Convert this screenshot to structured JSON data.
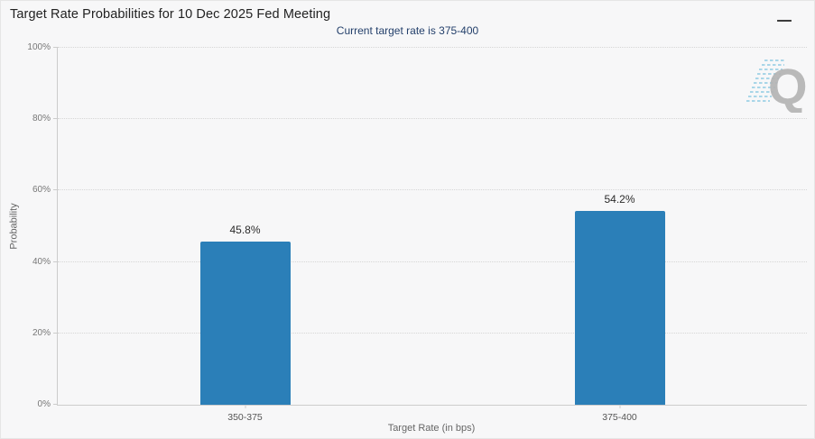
{
  "header": {
    "title": "Target Rate Probabilities for 10 Dec 2025 Fed Meeting",
    "menu_icon": "hamburger-icon"
  },
  "subtitle": "Current target rate is 375-400",
  "watermark": {
    "letter": "Q"
  },
  "chart_data": {
    "type": "bar",
    "title": "Target Rate Probabilities for 10 Dec 2025 Fed Meeting",
    "subtitle": "Current target rate is 375-400",
    "categories": [
      "350-375",
      "375-400"
    ],
    "values": [
      45.8,
      54.2
    ],
    "value_labels": [
      "45.8%",
      "54.2%"
    ],
    "xlabel": "Target Rate (in bps)",
    "ylabel": "Probability",
    "ylim": [
      0,
      100
    ],
    "yticks": [
      0,
      20,
      40,
      60,
      80,
      100
    ],
    "ytick_labels": [
      "0%",
      "20%",
      "40%",
      "60%",
      "80%",
      "100%"
    ],
    "grid": "horizontal-dotted",
    "legend": "none",
    "bar_color": "#2b7fb8"
  },
  "colors": {
    "background": "#f7f7f8",
    "bar": "#2b7fb8",
    "title_text": "#222222",
    "subtitle_text": "#24406b",
    "axis_line": "#cccccc",
    "tick_text": "#777777",
    "value_text": "#2b2b2b",
    "watermark_gray": "#b3b3b3",
    "watermark_blue": "#a9d6e8"
  }
}
